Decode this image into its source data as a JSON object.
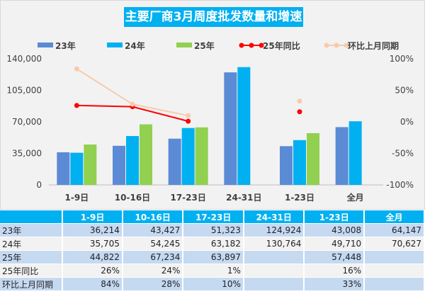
{
  "chart_data": {
    "type": "bar",
    "title": "主要厂商3月周度批发数量和增速",
    "categories": [
      "1-9日",
      "10-16日",
      "17-23日",
      "24-31日",
      "1-23日",
      "全月"
    ],
    "series": [
      {
        "name": "23年",
        "kind": "bar",
        "axis": "left",
        "color": "#5b8bd5",
        "values": [
          36214,
          43427,
          51323,
          124924,
          43008,
          64147
        ]
      },
      {
        "name": "24年",
        "kind": "bar",
        "axis": "left",
        "color": "#00b0f0",
        "values": [
          35705,
          54245,
          63182,
          130764,
          49710,
          70627
        ]
      },
      {
        "name": "25年",
        "kind": "bar",
        "axis": "left",
        "color": "#92d050",
        "values": [
          44822,
          67234,
          63897,
          null,
          57448,
          null
        ]
      },
      {
        "name": "25年同比",
        "kind": "line",
        "axis": "right",
        "color": "#ff0000",
        "values": [
          26,
          24,
          1,
          null,
          16,
          null
        ]
      },
      {
        "name": "环比上月同期",
        "kind": "line",
        "axis": "right",
        "color": "#f8cbad",
        "values": [
          84,
          28,
          10,
          null,
          33,
          null
        ]
      }
    ],
    "y_left": {
      "range": [
        0,
        140000
      ],
      "ticks": [
        "0",
        "35,000",
        "70,000",
        "105,000",
        "140,000"
      ]
    },
    "y_right": {
      "range": [
        -100,
        100
      ],
      "ticks": [
        "-100%",
        "-50%",
        "0%",
        "50%",
        "100%"
      ]
    },
    "legend_position": "top",
    "grid": false
  },
  "table": {
    "headers": [
      "",
      "1-9日",
      "10-16日",
      "17-23日",
      "24-31日",
      "1-23日",
      "全月"
    ],
    "rows": [
      [
        "23年",
        "36,214",
        "43,427",
        "51,323",
        "124,924",
        "43,008",
        "64,147"
      ],
      [
        "24年",
        "35,705",
        "54,245",
        "63,182",
        "130,764",
        "49,710",
        "70,627"
      ],
      [
        "25年",
        "44,822",
        "67,234",
        "63,897",
        "",
        "57,448",
        ""
      ],
      [
        "25年同比",
        "26%",
        "24%",
        "1%",
        "",
        "16%",
        ""
      ],
      [
        "环比上月同期",
        "84%",
        "28%",
        "10%",
        "",
        "33%",
        ""
      ]
    ]
  }
}
